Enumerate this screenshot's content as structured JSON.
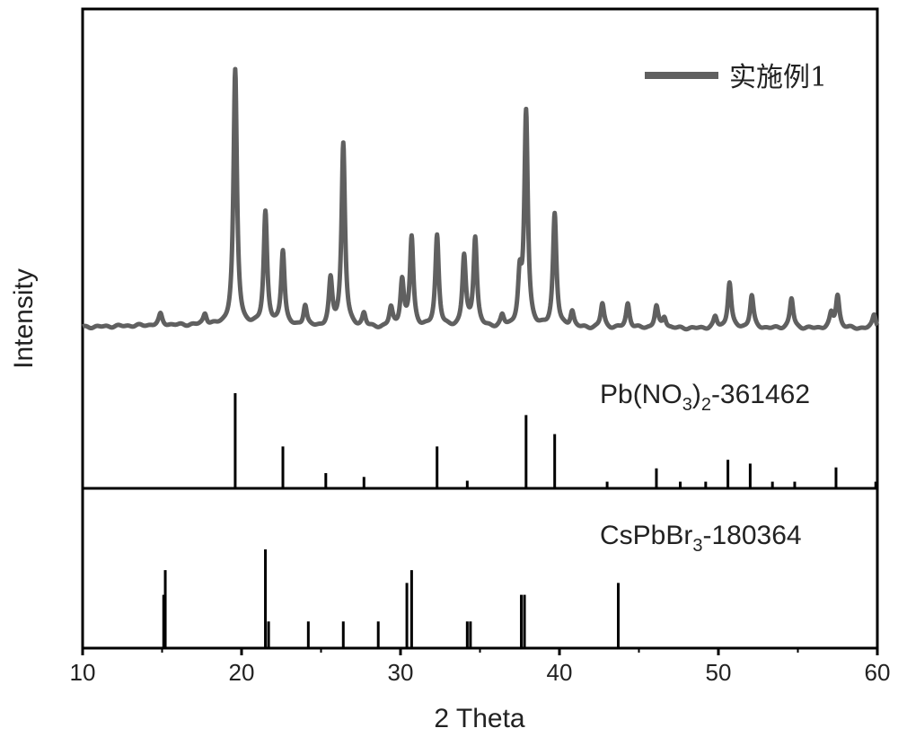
{
  "chart_data": {
    "type": "line",
    "xlabel": "2 Theta",
    "ylabel": "Intensity",
    "xlim": [
      10,
      60
    ],
    "xticks": [
      "10",
      "20",
      "30",
      "40",
      "50",
      "60"
    ],
    "colors": {
      "pattern": "#606060",
      "reference": "#000000",
      "axes": "#000000"
    },
    "panels": [
      {
        "kind": "pattern",
        "legend": "实施例1",
        "baseline": 0.04,
        "peaks": [
          {
            "x": 14.9,
            "h": 0.04
          },
          {
            "x": 17.7,
            "h": 0.04
          },
          {
            "x": 19.6,
            "h": 0.94
          },
          {
            "x": 21.5,
            "h": 0.42
          },
          {
            "x": 22.6,
            "h": 0.28
          },
          {
            "x": 24.0,
            "h": 0.08
          },
          {
            "x": 25.6,
            "h": 0.17
          },
          {
            "x": 26.4,
            "h": 0.68
          },
          {
            "x": 27.7,
            "h": 0.05
          },
          {
            "x": 29.4,
            "h": 0.07
          },
          {
            "x": 30.1,
            "h": 0.17
          },
          {
            "x": 30.7,
            "h": 0.33
          },
          {
            "x": 32.3,
            "h": 0.34
          },
          {
            "x": 34.0,
            "h": 0.26
          },
          {
            "x": 34.7,
            "h": 0.33
          },
          {
            "x": 36.4,
            "h": 0.04
          },
          {
            "x": 37.5,
            "h": 0.17
          },
          {
            "x": 37.9,
            "h": 0.79
          },
          {
            "x": 39.7,
            "h": 0.42
          },
          {
            "x": 40.8,
            "h": 0.06
          },
          {
            "x": 42.7,
            "h": 0.09
          },
          {
            "x": 44.3,
            "h": 0.09
          },
          {
            "x": 46.1,
            "h": 0.08
          },
          {
            "x": 46.6,
            "h": 0.04
          },
          {
            "x": 49.8,
            "h": 0.04
          },
          {
            "x": 50.7,
            "h": 0.17
          },
          {
            "x": 52.1,
            "h": 0.12
          },
          {
            "x": 54.6,
            "h": 0.11
          },
          {
            "x": 57.1,
            "h": 0.05
          },
          {
            "x": 57.5,
            "h": 0.12
          },
          {
            "x": 59.8,
            "h": 0.05
          }
        ]
      },
      {
        "kind": "reference",
        "label_main": "Pb(NO",
        "label_sub1": "3",
        "label_paren": ")",
        "label_sub2": "2",
        "label_tail": "-361462",
        "sticks": [
          {
            "x": 19.6,
            "h": 1.0
          },
          {
            "x": 22.6,
            "h": 0.44
          },
          {
            "x": 25.3,
            "h": 0.16
          },
          {
            "x": 27.7,
            "h": 0.12
          },
          {
            "x": 32.3,
            "h": 0.44
          },
          {
            "x": 34.2,
            "h": 0.08
          },
          {
            "x": 37.9,
            "h": 0.77
          },
          {
            "x": 39.7,
            "h": 0.57
          },
          {
            "x": 43.0,
            "h": 0.07
          },
          {
            "x": 46.1,
            "h": 0.21
          },
          {
            "x": 47.6,
            "h": 0.07
          },
          {
            "x": 49.2,
            "h": 0.07
          },
          {
            "x": 50.6,
            "h": 0.3
          },
          {
            "x": 52.0,
            "h": 0.26
          },
          {
            "x": 53.4,
            "h": 0.07
          },
          {
            "x": 54.8,
            "h": 0.07
          },
          {
            "x": 57.4,
            "h": 0.22
          },
          {
            "x": 59.9,
            "h": 0.07
          }
        ]
      },
      {
        "kind": "reference",
        "label_main": "CsPbBr",
        "label_sub1": "3",
        "label_paren": "",
        "label_sub2": "",
        "label_tail": "-180364",
        "sticks": [
          {
            "x": 15.1,
            "h": 0.54
          },
          {
            "x": 15.2,
            "h": 0.79
          },
          {
            "x": 21.5,
            "h": 1.0
          },
          {
            "x": 21.7,
            "h": 0.27
          },
          {
            "x": 24.2,
            "h": 0.27
          },
          {
            "x": 26.4,
            "h": 0.27
          },
          {
            "x": 28.6,
            "h": 0.27
          },
          {
            "x": 30.4,
            "h": 0.66
          },
          {
            "x": 30.7,
            "h": 0.79
          },
          {
            "x": 34.2,
            "h": 0.27
          },
          {
            "x": 34.4,
            "h": 0.27
          },
          {
            "x": 37.6,
            "h": 0.54
          },
          {
            "x": 37.8,
            "h": 0.54
          },
          {
            "x": 43.7,
            "h": 0.66
          }
        ]
      }
    ]
  }
}
